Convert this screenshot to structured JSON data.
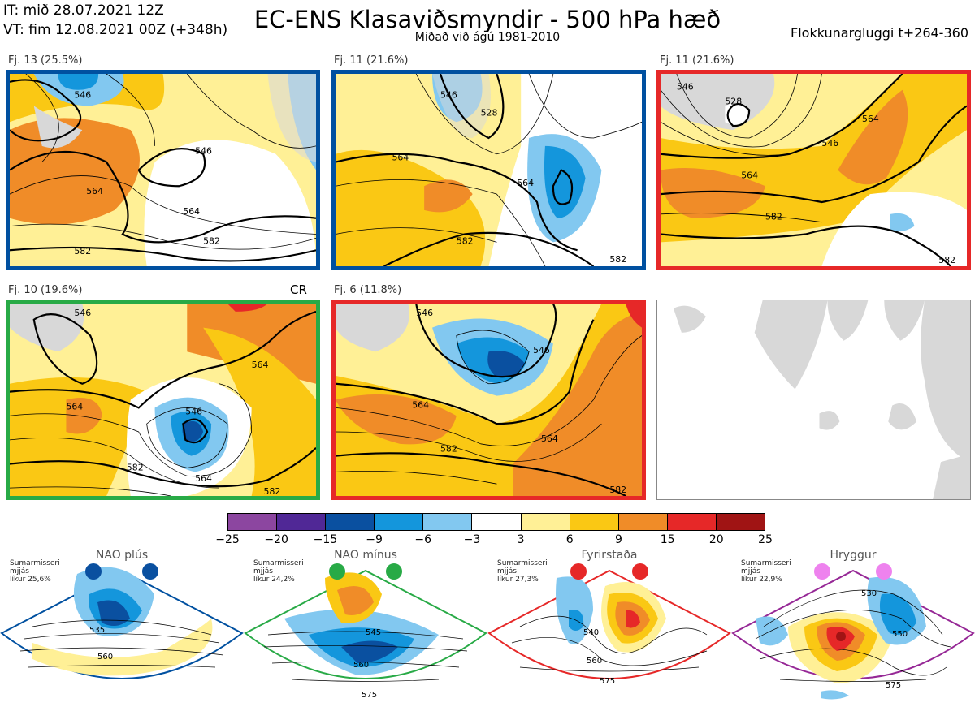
{
  "header": {
    "init": "IT: mið 28.07.2021 12Z",
    "valid": "VT: fim 12.08.2021 00Z  (+348h)",
    "title": "EC-ENS Klasaviðsmyndir - 500 hPa hæð",
    "subtitle": "Miðað við ágú 1981-2010",
    "window": "Flokkunargluggi t+264-360"
  },
  "panels": [
    {
      "label": "Fj. 13 (25.5%)",
      "border": "#0050a0",
      "contours": [
        "546",
        "546",
        "564",
        "564",
        "582",
        "582"
      ]
    },
    {
      "label": "Fj. 11 (21.6%)",
      "border": "#0050a0",
      "contours": [
        "546",
        "528",
        "564",
        "564",
        "582",
        "582"
      ]
    },
    {
      "label": "Fj. 11 (21.6%)",
      "border": "#e62828",
      "contours": [
        "546",
        "528",
        "546",
        "564",
        "564",
        "582",
        "582"
      ]
    },
    {
      "label": "Fj. 10 (19.6%)",
      "border": "#28aa46",
      "tag": "CR",
      "contours": [
        "546",
        "564",
        "564",
        "546",
        "564",
        "582",
        "582"
      ]
    },
    {
      "label": "Fj. 6 (11.8%)",
      "border": "#e62828",
      "contours": [
        "546",
        "546",
        "564",
        "564",
        "582",
        "582"
      ]
    },
    {
      "label": "",
      "border": "#888888"
    }
  ],
  "colorbar": {
    "colors": [
      "#8c46a0",
      "#502896",
      "#0a50a0",
      "#1496dc",
      "#82c8f0",
      "#ffffff",
      "#fff096",
      "#fac814",
      "#f08c28",
      "#e62828",
      "#a01414"
    ],
    "ticks": [
      "−25",
      "−20",
      "−15",
      "−9",
      "−6",
      "−3",
      "3",
      "6",
      "9",
      "15",
      "20",
      "25"
    ]
  },
  "regimes": [
    {
      "name": "NAO plús",
      "info": [
        "Sumarmisseri",
        "mjjás",
        "líkur 25,6%"
      ],
      "border": "#0050a0",
      "dots": "#0a50a0",
      "contours": [
        "535",
        "560"
      ]
    },
    {
      "name": "NAO mínus",
      "info": [
        "Sumarmisseri",
        "mjjás",
        "líkur 24,2%"
      ],
      "border": "#28aa46",
      "dots": "#28aa46",
      "contours": [
        "545",
        "560",
        "575"
      ]
    },
    {
      "name": "Fyrirstaða",
      "info": [
        "Sumarmisseri",
        "mjjás",
        "líkur 27,3%"
      ],
      "border": "#e62828",
      "dots": "#e62828",
      "contours": [
        "540",
        "560",
        "575"
      ]
    },
    {
      "name": "Hryggur",
      "info": [
        "Sumarmisseri",
        "mjjás",
        "líkur 22,9%"
      ],
      "border": "#962896",
      "dots": "#ee82ee",
      "contours": [
        "530",
        "550",
        "575"
      ]
    }
  ]
}
